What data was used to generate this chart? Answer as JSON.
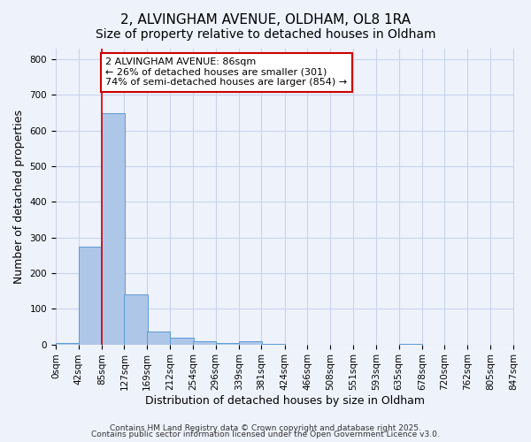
{
  "title": "2, ALVINGHAM AVENUE, OLDHAM, OL8 1RA",
  "subtitle": "Size of property relative to detached houses in Oldham",
  "xlabel": "Distribution of detached houses by size in Oldham",
  "ylabel": "Number of detached properties",
  "bar_values": [
    5,
    275,
    648,
    140,
    37,
    18,
    10,
    3,
    8,
    2,
    0,
    0,
    0,
    0,
    0,
    2,
    0,
    0,
    0
  ],
  "bar_left_edges": [
    0,
    42,
    85,
    127,
    169,
    212,
    254,
    296,
    339,
    381,
    424,
    466,
    508,
    551,
    593,
    635,
    678,
    720,
    762
  ],
  "bin_width": 43,
  "xlim_max": 848,
  "bar_color": "#aec6e8",
  "bar_edge_color": "#5b9bd5",
  "property_line_x": 86,
  "property_line_color": "#cc0000",
  "annotation_box_text": "2 ALVINGHAM AVENUE: 86sqm\n← 26% of detached houses are smaller (301)\n74% of semi-detached houses are larger (854) →",
  "annotation_box_facecolor": "#ffffff",
  "annotation_box_edgecolor": "#cc0000",
  "ylim": [
    0,
    830
  ],
  "yticks": [
    0,
    100,
    200,
    300,
    400,
    500,
    600,
    700,
    800
  ],
  "xtick_positions": [
    0,
    42,
    85,
    127,
    169,
    212,
    254,
    296,
    339,
    381,
    424,
    466,
    508,
    551,
    593,
    635,
    678,
    720,
    762,
    805,
    847
  ],
  "xtick_labels": [
    "0sqm",
    "42sqm",
    "85sqm",
    "127sqm",
    "169sqm",
    "212sqm",
    "254sqm",
    "296sqm",
    "339sqm",
    "381sqm",
    "424sqm",
    "466sqm",
    "508sqm",
    "551sqm",
    "593sqm",
    "635sqm",
    "678sqm",
    "720sqm",
    "762sqm",
    "805sqm",
    "847sqm"
  ],
  "background_color": "#eef2fb",
  "grid_color": "#c8d4ee",
  "footer_line1": "Contains HM Land Registry data © Crown copyright and database right 2025.",
  "footer_line2": "Contains public sector information licensed under the Open Government Licence v3.0.",
  "title_fontsize": 11,
  "subtitle_fontsize": 10,
  "axis_label_fontsize": 9,
  "tick_fontsize": 7.5,
  "annotation_fontsize": 8,
  "footer_fontsize": 6.5
}
